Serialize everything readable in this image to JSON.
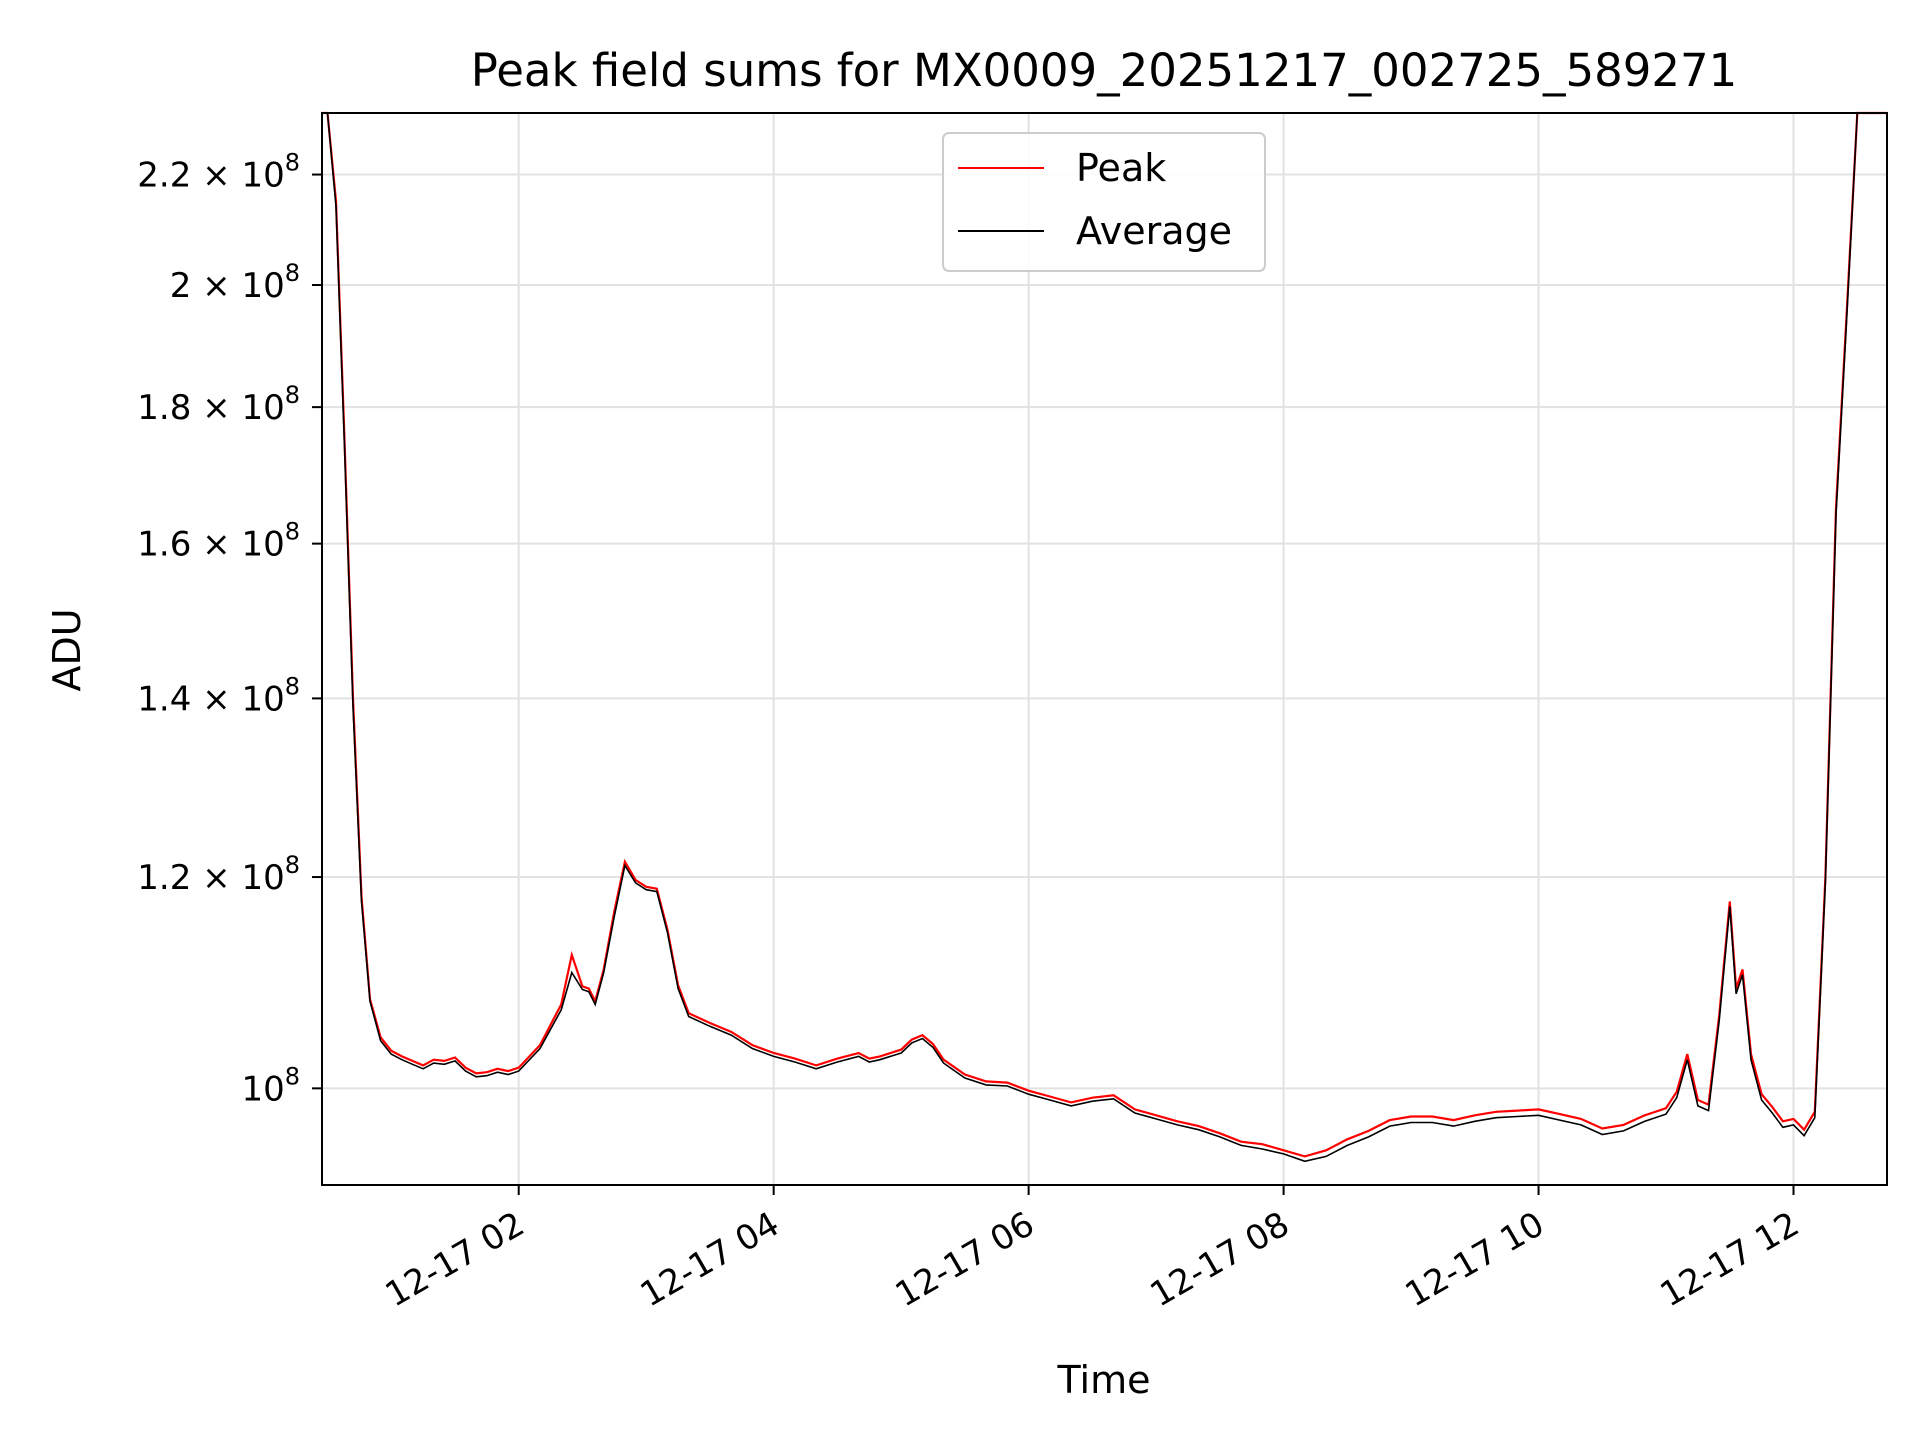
{
  "chart_data": {
    "type": "line",
    "title": "Peak field sums for MX0009_20251217_002725_589271",
    "xlabel": "Time",
    "ylabel": "ADU",
    "y_scale": "log",
    "ylim": [
      92000000,
      232000000
    ],
    "xlim": [
      "2025-12-17 00:27:25",
      "2025-12-17 12:44:00"
    ],
    "grid": true,
    "legend_location": "upper center",
    "x_ticks": [
      {
        "value": "2025-12-17 02:00",
        "label": "12-17 02"
      },
      {
        "value": "2025-12-17 04:00",
        "label": "12-17 04"
      },
      {
        "value": "2025-12-17 06:00",
        "label": "12-17 06"
      },
      {
        "value": "2025-12-17 08:00",
        "label": "12-17 08"
      },
      {
        "value": "2025-12-17 10:00",
        "label": "12-17 10"
      },
      {
        "value": "2025-12-17 12:00",
        "label": "12-17 12"
      }
    ],
    "y_ticks": [
      {
        "value": 100000000,
        "mantissa": "10",
        "exponent": "8"
      },
      {
        "value": 120000000,
        "mantissa": "1.2 × 10",
        "exponent": "8"
      },
      {
        "value": 140000000,
        "mantissa": "1.4 × 10",
        "exponent": "8"
      },
      {
        "value": 160000000,
        "mantissa": "1.6 × 10",
        "exponent": "8"
      },
      {
        "value": 180000000,
        "mantissa": "1.8 × 10",
        "exponent": "8"
      },
      {
        "value": 200000000,
        "mantissa": "2 × 10",
        "exponent": "8"
      },
      {
        "value": 220000000,
        "mantissa": "2.2 × 10",
        "exponent": "8"
      }
    ],
    "series": [
      {
        "name": "Peak",
        "color": "#ff0000",
        "x": [
          "2025-12-17 00:27",
          "2025-12-17 00:30",
          "2025-12-17 00:34",
          "2025-12-17 00:38",
          "2025-12-17 00:42",
          "2025-12-17 00:46",
          "2025-12-17 00:50",
          "2025-12-17 00:55",
          "2025-12-17 01:00",
          "2025-12-17 01:05",
          "2025-12-17 01:10",
          "2025-12-17 01:15",
          "2025-12-17 01:20",
          "2025-12-17 01:25",
          "2025-12-17 01:30",
          "2025-12-17 01:35",
          "2025-12-17 01:40",
          "2025-12-17 01:45",
          "2025-12-17 01:50",
          "2025-12-17 01:55",
          "2025-12-17 02:00",
          "2025-12-17 02:10",
          "2025-12-17 02:20",
          "2025-12-17 02:25",
          "2025-12-17 02:30",
          "2025-12-17 02:33",
          "2025-12-17 02:36",
          "2025-12-17 02:40",
          "2025-12-17 02:45",
          "2025-12-17 02:50",
          "2025-12-17 02:55",
          "2025-12-17 03:00",
          "2025-12-17 03:05",
          "2025-12-17 03:10",
          "2025-12-17 03:15",
          "2025-12-17 03:20",
          "2025-12-17 03:30",
          "2025-12-17 03:40",
          "2025-12-17 03:50",
          "2025-12-17 04:00",
          "2025-12-17 04:10",
          "2025-12-17 04:20",
          "2025-12-17 04:30",
          "2025-12-17 04:40",
          "2025-12-17 04:45",
          "2025-12-17 04:50",
          "2025-12-17 05:00",
          "2025-12-17 05:05",
          "2025-12-17 05:10",
          "2025-12-17 05:15",
          "2025-12-17 05:20",
          "2025-12-17 05:30",
          "2025-12-17 05:40",
          "2025-12-17 05:50",
          "2025-12-17 06:00",
          "2025-12-17 06:10",
          "2025-12-17 06:20",
          "2025-12-17 06:30",
          "2025-12-17 06:40",
          "2025-12-17 06:50",
          "2025-12-17 07:00",
          "2025-12-17 07:10",
          "2025-12-17 07:20",
          "2025-12-17 07:30",
          "2025-12-17 07:40",
          "2025-12-17 07:50",
          "2025-12-17 08:00",
          "2025-12-17 08:10",
          "2025-12-17 08:20",
          "2025-12-17 08:30",
          "2025-12-17 08:40",
          "2025-12-17 08:50",
          "2025-12-17 09:00",
          "2025-12-17 09:10",
          "2025-12-17 09:20",
          "2025-12-17 09:30",
          "2025-12-17 09:40",
          "2025-12-17 09:50",
          "2025-12-17 10:00",
          "2025-12-17 10:10",
          "2025-12-17 10:20",
          "2025-12-17 10:30",
          "2025-12-17 10:40",
          "2025-12-17 10:50",
          "2025-12-17 11:00",
          "2025-12-17 11:05",
          "2025-12-17 11:10",
          "2025-12-17 11:15",
          "2025-12-17 11:20",
          "2025-12-17 11:25",
          "2025-12-17 11:30",
          "2025-12-17 11:33",
          "2025-12-17 11:36",
          "2025-12-17 11:40",
          "2025-12-17 11:45",
          "2025-12-17 11:50",
          "2025-12-17 11:55",
          "2025-12-17 12:00",
          "2025-12-17 12:05",
          "2025-12-17 12:10",
          "2025-12-17 12:15",
          "2025-12-17 12:20",
          "2025-12-17 12:25",
          "2025-12-17 12:30",
          "2025-12-17 12:35",
          "2025-12-17 12:40",
          "2025-12-17 12:44"
        ],
        "y": [
          232000000,
          232000000,
          215000000,
          175000000,
          140000000,
          118000000,
          108000000,
          104500000,
          103300000,
          102800000,
          102400000,
          102000000,
          102500000,
          102400000,
          102700000,
          101800000,
          101300000,
          101400000,
          101700000,
          101500000,
          101800000,
          103800000,
          107500000,
          112200000,
          109200000,
          109000000,
          107800000,
          110800000,
          116500000,
          121600000,
          119700000,
          119000000,
          118800000,
          114700000,
          109300000,
          106700000,
          105800000,
          105000000,
          103800000,
          103100000,
          102600000,
          102000000,
          102600000,
          103100000,
          102600000,
          102800000,
          103400000,
          104300000,
          104700000,
          103900000,
          102500000,
          101200000,
          100600000,
          100500000,
          99800000,
          99300000,
          98800000,
          99200000,
          99400000,
          98200000,
          97700000,
          97200000,
          96800000,
          96200000,
          95500000,
          95300000,
          94800000,
          94300000,
          94800000,
          95700000,
          96400000,
          97300000,
          97600000,
          97600000,
          97300000,
          97700000,
          98000000,
          98100000,
          98200000,
          97800000,
          97400000,
          96600000,
          96900000,
          97700000,
          98300000,
          99700000,
          103000000,
          99000000,
          98600000,
          106500000,
          117500000,
          109000000,
          110800000,
          103000000,
          99500000,
          98400000,
          97200000,
          97400000,
          96500000,
          98000000,
          120000000,
          165000000,
          195000000,
          232000000,
          232000000,
          232000000,
          232000000
        ]
      },
      {
        "name": "Average",
        "color": "#000000",
        "x": [
          "2025-12-17 00:27",
          "2025-12-17 00:30",
          "2025-12-17 00:34",
          "2025-12-17 00:38",
          "2025-12-17 00:42",
          "2025-12-17 00:46",
          "2025-12-17 00:50",
          "2025-12-17 00:55",
          "2025-12-17 01:00",
          "2025-12-17 01:05",
          "2025-12-17 01:10",
          "2025-12-17 01:15",
          "2025-12-17 01:20",
          "2025-12-17 01:25",
          "2025-12-17 01:30",
          "2025-12-17 01:35",
          "2025-12-17 01:40",
          "2025-12-17 01:45",
          "2025-12-17 01:50",
          "2025-12-17 01:55",
          "2025-12-17 02:00",
          "2025-12-17 02:10",
          "2025-12-17 02:20",
          "2025-12-17 02:25",
          "2025-12-17 02:30",
          "2025-12-17 02:33",
          "2025-12-17 02:36",
          "2025-12-17 02:40",
          "2025-12-17 02:45",
          "2025-12-17 02:50",
          "2025-12-17 02:55",
          "2025-12-17 03:00",
          "2025-12-17 03:05",
          "2025-12-17 03:10",
          "2025-12-17 03:15",
          "2025-12-17 03:20",
          "2025-12-17 03:30",
          "2025-12-17 03:40",
          "2025-12-17 03:50",
          "2025-12-17 04:00",
          "2025-12-17 04:10",
          "2025-12-17 04:20",
          "2025-12-17 04:30",
          "2025-12-17 04:40",
          "2025-12-17 04:45",
          "2025-12-17 04:50",
          "2025-12-17 05:00",
          "2025-12-17 05:05",
          "2025-12-17 05:10",
          "2025-12-17 05:15",
          "2025-12-17 05:20",
          "2025-12-17 05:30",
          "2025-12-17 05:40",
          "2025-12-17 05:50",
          "2025-12-17 06:00",
          "2025-12-17 06:10",
          "2025-12-17 06:20",
          "2025-12-17 06:30",
          "2025-12-17 06:40",
          "2025-12-17 06:50",
          "2025-12-17 07:00",
          "2025-12-17 07:10",
          "2025-12-17 07:20",
          "2025-12-17 07:30",
          "2025-12-17 07:40",
          "2025-12-17 07:50",
          "2025-12-17 08:00",
          "2025-12-17 08:10",
          "2025-12-17 08:20",
          "2025-12-17 08:30",
          "2025-12-17 08:40",
          "2025-12-17 08:50",
          "2025-12-17 09:00",
          "2025-12-17 09:10",
          "2025-12-17 09:20",
          "2025-12-17 09:30",
          "2025-12-17 09:40",
          "2025-12-17 09:50",
          "2025-12-17 10:00",
          "2025-12-17 10:10",
          "2025-12-17 10:20",
          "2025-12-17 10:30",
          "2025-12-17 10:40",
          "2025-12-17 10:50",
          "2025-12-17 11:00",
          "2025-12-17 11:05",
          "2025-12-17 11:10",
          "2025-12-17 11:15",
          "2025-12-17 11:20",
          "2025-12-17 11:25",
          "2025-12-17 11:30",
          "2025-12-17 11:33",
          "2025-12-17 11:36",
          "2025-12-17 11:40",
          "2025-12-17 11:45",
          "2025-12-17 11:50",
          "2025-12-17 11:55",
          "2025-12-17 12:00",
          "2025-12-17 12:05",
          "2025-12-17 12:10",
          "2025-12-17 12:15",
          "2025-12-17 12:20",
          "2025-12-17 12:25",
          "2025-12-17 12:30",
          "2025-12-17 12:35",
          "2025-12-17 12:40",
          "2025-12-17 12:44"
        ],
        "y": [
          232000000,
          232000000,
          214000000,
          174000000,
          139000000,
          117500000,
          107800000,
          104200000,
          103000000,
          102500000,
          102100000,
          101700000,
          102200000,
          102100000,
          102400000,
          101500000,
          101000000,
          101100000,
          101400000,
          101200000,
          101500000,
          103500000,
          107000000,
          110500000,
          108900000,
          108700000,
          107500000,
          110500000,
          116000000,
          121200000,
          119400000,
          118700000,
          118500000,
          114400000,
          109000000,
          106400000,
          105500000,
          104700000,
          103500000,
          102800000,
          102300000,
          101700000,
          102300000,
          102800000,
          102300000,
          102500000,
          103100000,
          104000000,
          104400000,
          103600000,
          102200000,
          100900000,
          100300000,
          100200000,
          99500000,
          99000000,
          98500000,
          98900000,
          99100000,
          97900000,
          97400000,
          96900000,
          96500000,
          95900000,
          95200000,
          94900000,
          94500000,
          93900000,
          94300000,
          95200000,
          95900000,
          96800000,
          97100000,
          97100000,
          96800000,
          97200000,
          97500000,
          97600000,
          97700000,
          97300000,
          96900000,
          96100000,
          96400000,
          97200000,
          97800000,
          99200000,
          102500000,
          98500000,
          98100000,
          106000000,
          117000000,
          108500000,
          110300000,
          102500000,
          99000000,
          97900000,
          96700000,
          96900000,
          96000000,
          97500000,
          119500000,
          164000000,
          194000000,
          232000000,
          232000000,
          232000000,
          232000000
        ]
      }
    ]
  }
}
